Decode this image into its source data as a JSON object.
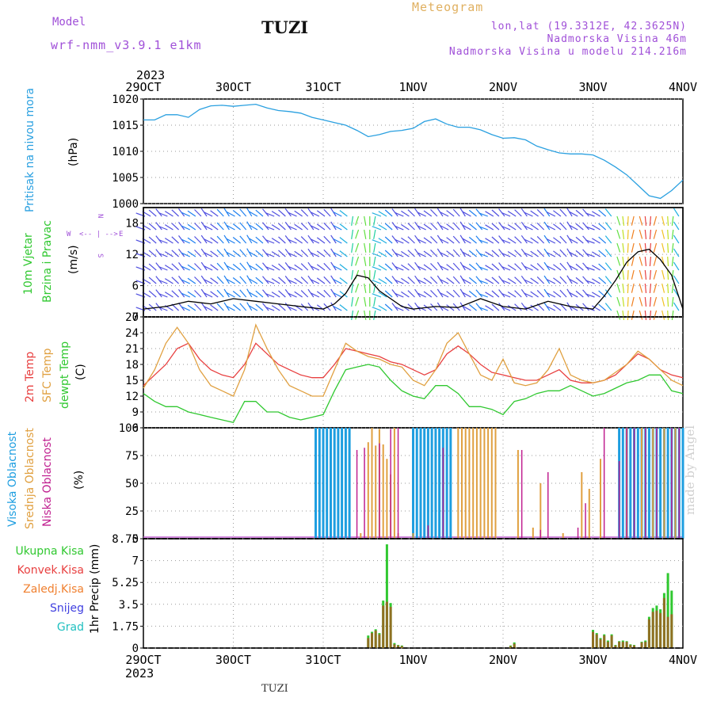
{
  "header": {
    "model_label": "Model",
    "model_version": "wrf-nmm_v3.9.1 e1km",
    "station": "TUZI",
    "meteogram": "Meteogram",
    "lonlat": "lon,lat (19.3312E, 42.3625N)",
    "altitude": "Nadmorska Visina 46m",
    "model_altitude": "Nadmorska Visina u modelu 214.216m",
    "footer_station": "TUZI",
    "signature": "made by Angel"
  },
  "time_axis": {
    "year": "2023",
    "ticks": [
      "29OCT",
      "30OCT",
      "31OCT",
      "1NOV",
      "2NOV",
      "3NOV",
      "4NOV"
    ],
    "hours_total": 144
  },
  "colors": {
    "pressure": "#2aa0e0",
    "t2m": "#e84040",
    "sfc": "#e0a040",
    "dewpoint": "#30c830",
    "high_cloud": "#1e9ee0",
    "mid_cloud": "#e0a040",
    "low_cloud": "#c02090",
    "total_precip": "#30c830",
    "conv_precip": "#e84040",
    "frozen_precip": "#f08030",
    "snow": "#4040e0",
    "hail": "#20c0c0",
    "wind_label": "#30c830",
    "wind_dir_label": "#a050d8"
  },
  "panels": {
    "pressure": {
      "label_1": "Pritisak na nivou mora",
      "label_2": "(hPa)",
      "yticks": [
        "1000",
        "1005",
        "1010",
        "1015",
        "1020"
      ]
    },
    "wind": {
      "label_1": "10m Vjetar",
      "label_2": "Brzina i Pravac",
      "label_3": "(m/s)",
      "dir_w": "W",
      "dir_e": "E",
      "dir_arrow": "<-- | -->",
      "dir_n": "N",
      "dir_s": "S",
      "yticks": [
        "0",
        "6",
        "12",
        "18"
      ]
    },
    "temperature": {
      "label_1": "2m Temp",
      "label_2": "SFC Temp",
      "label_3": "dewpt Temp",
      "label_4": "(C)",
      "yticks": [
        "6",
        "9",
        "12",
        "15",
        "18",
        "21",
        "24",
        "27"
      ]
    },
    "clouds": {
      "label_1": "Visoka Oblacnost",
      "label_2": "Srednja Oblacnost",
      "label_3": "Niska Oblacnost",
      "label_4": "(%)",
      "yticks": [
        "0",
        "25",
        "50",
        "75",
        "100"
      ]
    },
    "precip": {
      "legend": [
        "Ukupna Kisa",
        "Konvek.Kisa",
        "Zaledj.Kisa",
        "Snijeg",
        "Grad"
      ],
      "label": "1hr Precip (mm)",
      "yticks": [
        "0",
        "1.75",
        "3.5",
        "5.25",
        "7",
        "8.75"
      ]
    }
  },
  "chart_data": [
    {
      "type": "line",
      "name": "pressure",
      "ylim": [
        1000,
        1020
      ],
      "x_hours": [
        0,
        3,
        6,
        9,
        12,
        15,
        18,
        21,
        24,
        27,
        30,
        33,
        36,
        39,
        42,
        45,
        48,
        51,
        54,
        57,
        60,
        63,
        66,
        69,
        72,
        75,
        78,
        81,
        84,
        87,
        90,
        93,
        96,
        99,
        102,
        105,
        108,
        111,
        114,
        117,
        120,
        123,
        126,
        129,
        132,
        135,
        138,
        141,
        144
      ],
      "values": [
        1016,
        1016,
        1017,
        1017,
        1016.5,
        1018,
        1018.7,
        1018.8,
        1018.6,
        1018.8,
        1019,
        1018.3,
        1017.8,
        1017.6,
        1017.3,
        1016.5,
        1016,
        1015.5,
        1015,
        1014,
        1012.8,
        1013.2,
        1013.8,
        1014,
        1014.4,
        1015.7,
        1016.2,
        1015.2,
        1014.6,
        1014.6,
        1014.1,
        1013.2,
        1012.5,
        1012.6,
        1012.2,
        1011,
        1010.3,
        1009.7,
        1009.5,
        1009.5,
        1009.3,
        1008.3,
        1007,
        1005.5,
        1003.5,
        1001.5,
        1001,
        1002.5,
        1004.5
      ]
    },
    {
      "type": "line",
      "name": "wind",
      "ylim": [
        0,
        21
      ],
      "x_hours": [
        0,
        6,
        12,
        18,
        24,
        30,
        36,
        42,
        48,
        51,
        54,
        57,
        60,
        63,
        66,
        69,
        72,
        78,
        84,
        90,
        96,
        102,
        108,
        114,
        120,
        123,
        126,
        129,
        132,
        135,
        138,
        141,
        144
      ],
      "values": [
        1.5,
        2,
        3,
        2.5,
        3.5,
        3,
        2.5,
        2,
        1.5,
        2.5,
        4.5,
        8,
        7.5,
        5,
        3.5,
        2,
        1.5,
        2,
        1.8,
        3.5,
        2,
        1.5,
        3,
        2,
        1.5,
        4,
        7,
        10.5,
        12.5,
        13,
        11,
        8,
        1.5
      ]
    },
    {
      "type": "line",
      "name": "temperature",
      "ylim": [
        6,
        27
      ],
      "x_hours": [
        0,
        3,
        6,
        9,
        12,
        15,
        18,
        21,
        24,
        27,
        30,
        33,
        36,
        39,
        42,
        45,
        48,
        51,
        54,
        57,
        60,
        63,
        66,
        69,
        72,
        75,
        78,
        81,
        84,
        87,
        90,
        93,
        96,
        99,
        102,
        105,
        108,
        111,
        114,
        117,
        120,
        123,
        126,
        129,
        132,
        135,
        138,
        141,
        144
      ],
      "series": [
        {
          "name": "2m Temp",
          "values": [
            14,
            16,
            18,
            21,
            22,
            19,
            17,
            16,
            15.5,
            18,
            22,
            20,
            18,
            17,
            16,
            15.5,
            15.5,
            18,
            21,
            20.5,
            20,
            19.5,
            18.5,
            18,
            17,
            16,
            17,
            20,
            21.5,
            20,
            18,
            16.5,
            16,
            15.5,
            15,
            15,
            16,
            17,
            15,
            14.5,
            14.5,
            15,
            16,
            18,
            20,
            19,
            17,
            16,
            15.5
          ]
        },
        {
          "name": "SFC Temp",
          "values": [
            13.5,
            17,
            22,
            25,
            22,
            17,
            14,
            13,
            12,
            17,
            25.5,
            21,
            17,
            14,
            13,
            12,
            12,
            17,
            22,
            20.5,
            19.5,
            19,
            18,
            17.5,
            15,
            14,
            17,
            22,
            24,
            20,
            16,
            15,
            19,
            14.5,
            14,
            14.5,
            17,
            21,
            16,
            15,
            14.5,
            15,
            16.5,
            18,
            20.5,
            19,
            17,
            15,
            14
          ]
        },
        {
          "name": "dewpt Temp",
          "values": [
            12.5,
            11,
            10,
            10,
            9,
            8.5,
            8,
            7.5,
            7,
            11,
            11,
            9,
            9,
            8,
            7.5,
            8,
            8.5,
            13,
            17,
            17.5,
            18,
            17.5,
            15,
            13,
            12,
            11.5,
            14,
            14,
            12.5,
            10,
            10,
            9.5,
            8.5,
            11,
            11.5,
            12.5,
            13,
            13,
            14,
            13,
            12,
            12.5,
            13.5,
            14.5,
            15,
            16,
            16,
            13,
            12.5
          ]
        }
      ]
    },
    {
      "type": "bar",
      "name": "clouds",
      "ylim": [
        0,
        100
      ],
      "series": [
        {
          "name": "Visoka Oblacnost",
          "x_hours": [
            46,
            47,
            48,
            49,
            50,
            51,
            52,
            53,
            54,
            55,
            72,
            73,
            74,
            75,
            76,
            77,
            78,
            79,
            80,
            81,
            82,
            127,
            128,
            129,
            130,
            131,
            132,
            133,
            134,
            135,
            136,
            137,
            138,
            139,
            140,
            141,
            142,
            143,
            144
          ],
          "values": [
            100,
            100,
            100,
            100,
            100,
            100,
            100,
            100,
            100,
            100,
            100,
            100,
            100,
            100,
            100,
            100,
            100,
            100,
            100,
            100,
            100,
            100,
            100,
            100,
            100,
            100,
            100,
            100,
            100,
            100,
            100,
            100,
            100,
            100,
            100,
            100,
            100,
            100,
            100
          ]
        },
        {
          "name": "Srednja Oblacnost",
          "x_hours": [
            58,
            60,
            61,
            62,
            63,
            64,
            65,
            66,
            67,
            68,
            72,
            84,
            85,
            86,
            87,
            88,
            89,
            90,
            91,
            92,
            93,
            94,
            100,
            104,
            106,
            112,
            117,
            119,
            122,
            129,
            133,
            136,
            139,
            142
          ],
          "values": [
            5,
            87,
            100,
            84,
            99,
            85,
            72,
            58,
            100,
            5,
            5,
            100,
            100,
            100,
            100,
            100,
            100,
            100,
            100,
            100,
            100,
            100,
            80,
            10,
            50,
            5,
            60,
            45,
            72,
            100,
            100,
            100,
            100,
            100
          ]
        },
        {
          "name": "Niska Oblacnost",
          "x_hours": [
            57,
            59,
            63,
            66,
            68,
            76,
            80,
            101,
            106,
            108,
            116,
            118,
            123,
            127,
            129,
            131,
            134,
            137,
            141,
            143
          ],
          "values": [
            80,
            82,
            86,
            99,
            100,
            12,
            82,
            80,
            8,
            60,
            10,
            32,
            100,
            70,
            100,
            100,
            100,
            100,
            100,
            100
          ]
        }
      ]
    },
    {
      "type": "bar",
      "name": "precip",
      "ylim": [
        0,
        8.75
      ],
      "x_hours": [
        60,
        61,
        62,
        63,
        64,
        65,
        66,
        67,
        68,
        69,
        98,
        99,
        120,
        121,
        122,
        123,
        124,
        125,
        126,
        127,
        128,
        129,
        130,
        131,
        133,
        134,
        135,
        136,
        137,
        138,
        139,
        140,
        141
      ],
      "series": [
        {
          "name": "Ukupna Kisa",
          "values": [
            1,
            1.3,
            1.5,
            1.2,
            3.8,
            8.3,
            3.6,
            0.4,
            0.25,
            0.2,
            0.2,
            0.45,
            1.45,
            1.2,
            0.8,
            1.1,
            0.6,
            1.1,
            0.25,
            0.55,
            0.6,
            0.55,
            0.3,
            0.25,
            0.5,
            0.6,
            2.5,
            3.2,
            3.4,
            3.1,
            4.4,
            6,
            4.6
          ]
        },
        {
          "name": "Konvek.Kisa",
          "values": [
            0.8,
            1.2,
            1.4,
            1.1,
            3.4,
            3.7,
            3.3,
            0.3,
            0.2,
            0.15,
            0.15,
            0.35,
            1.3,
            1.1,
            0.7,
            1,
            0.5,
            1,
            0.2,
            0.5,
            0.5,
            0.5,
            0.25,
            0.2,
            0.45,
            0.5,
            2.3,
            2.9,
            3,
            2.8,
            4,
            2.5,
            2.7
          ]
        }
      ]
    }
  ]
}
